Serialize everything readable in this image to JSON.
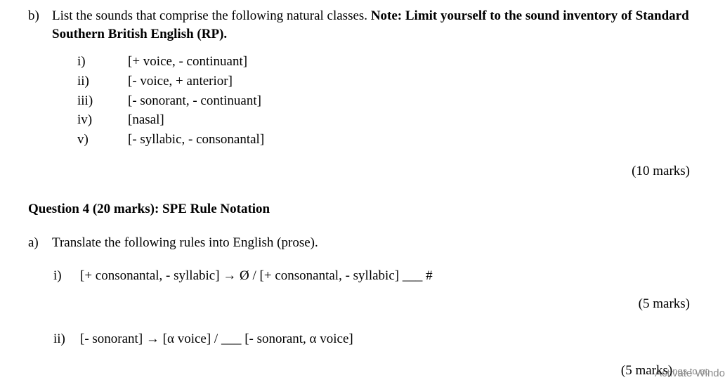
{
  "partB": {
    "label": "b)",
    "intro_plain": "List the sounds that comprise the following natural classes. ",
    "intro_bold": "Note: Limit yourself to the sound inventory of Standard Southern British English (RP).",
    "items": [
      {
        "num": "i)",
        "text": "[+ voice, - continuant]"
      },
      {
        "num": "ii)",
        "text": "[- voice, + anterior]"
      },
      {
        "num": "iii)",
        "text": "[- sonorant, - continuant]"
      },
      {
        "num": "iv)",
        "text": "[nasal]"
      },
      {
        "num": "v)",
        "text": "[- syllabic, - consonantal]"
      }
    ],
    "marks": "(10 marks)"
  },
  "q4": {
    "heading": "Question 4 (20 marks): SPE Rule Notation",
    "partA": {
      "label": "a)",
      "prompt": "Translate the following rules into English (prose).",
      "rules": [
        {
          "num": "i)",
          "text": "[+ consonantal, - syllabic] → Ø / [+ consonantal, - syllabic] ___ #",
          "marks": "(5 marks)"
        },
        {
          "num": "ii)",
          "text": "[- sonorant] → [α voice] / ___ [- sonorant, α voice]",
          "marks": "(5 marks)"
        }
      ]
    }
  },
  "watermark": {
    "line1": "Activate Windo",
    "line2_trail": "ngs to ac"
  }
}
